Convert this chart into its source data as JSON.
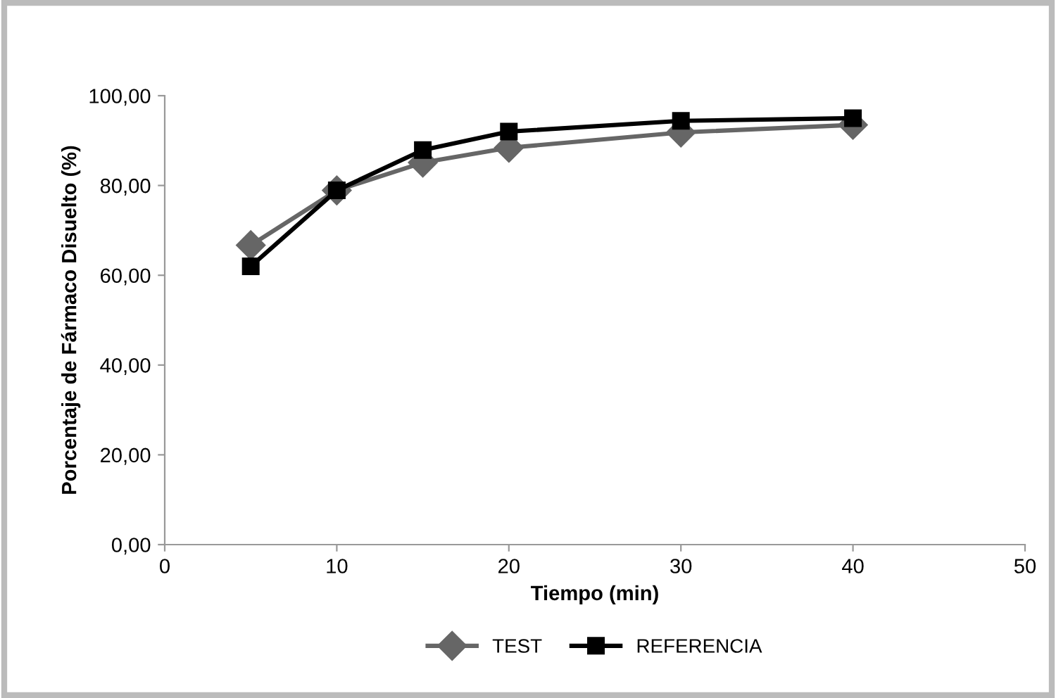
{
  "chart_data": {
    "type": "line",
    "xlabel": "Tiempo (min)",
    "ylabel": "Porcentaje de Fármaco Disuelto (%)",
    "x": [
      5,
      10,
      15,
      20,
      30,
      40
    ],
    "series": [
      {
        "name": "TEST",
        "color": "#666666",
        "marker": "diamond",
        "values": [
          66.7,
          78.9,
          85.1,
          88.4,
          91.8,
          93.5
        ]
      },
      {
        "name": "REFERENCIA",
        "color": "#000000",
        "marker": "square",
        "values": [
          62.0,
          78.9,
          87.9,
          92.0,
          94.4,
          95.0
        ]
      }
    ],
    "xlim": [
      0,
      50
    ],
    "xticks": [
      0,
      10,
      20,
      30,
      40,
      50
    ],
    "ylim": [
      0,
      100
    ],
    "yticks": [
      {
        "value": 0,
        "label": "0,00"
      },
      {
        "value": 20,
        "label": "20,00"
      },
      {
        "value": 40,
        "label": "40,00"
      },
      {
        "value": 60,
        "label": "60,00"
      },
      {
        "value": 80,
        "label": "80,00"
      },
      {
        "value": 100,
        "label": "100,00"
      }
    ],
    "grid": false,
    "legend": "bottom",
    "line_style": "solid"
  }
}
